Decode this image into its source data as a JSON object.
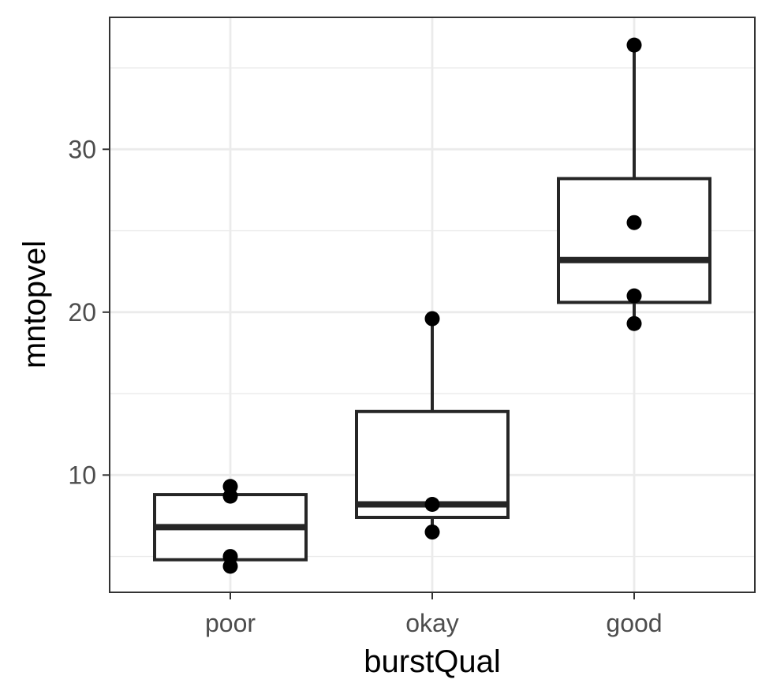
{
  "chart_data": {
    "type": "box",
    "xlabel": "burstQual",
    "ylabel": "mntopvel",
    "categories": [
      "poor",
      "okay",
      "good"
    ],
    "y_ticks": [
      10,
      20,
      30
    ],
    "ylim": [
      2.8,
      38.1
    ],
    "grid": true,
    "boxes": [
      {
        "category": "poor",
        "whisker_low": 4.4,
        "q1": 4.8,
        "median": 6.8,
        "q3": 8.8,
        "whisker_high": 9.3
      },
      {
        "category": "okay",
        "whisker_low": 6.5,
        "q1": 7.4,
        "median": 8.2,
        "q3": 13.9,
        "whisker_high": 19.6
      },
      {
        "category": "good",
        "whisker_low": 19.3,
        "q1": 20.6,
        "median": 23.2,
        "q3": 28.2,
        "whisker_high": 36.4
      }
    ],
    "points": [
      {
        "category": "poor",
        "y": 9.3
      },
      {
        "category": "poor",
        "y": 8.7
      },
      {
        "category": "poor",
        "y": 5.0
      },
      {
        "category": "poor",
        "y": 4.4
      },
      {
        "category": "okay",
        "y": 19.6
      },
      {
        "category": "okay",
        "y": 8.2
      },
      {
        "category": "okay",
        "y": 6.5
      },
      {
        "category": "good",
        "y": 36.4
      },
      {
        "category": "good",
        "y": 25.5
      },
      {
        "category": "good",
        "y": 21.0
      },
      {
        "category": "good",
        "y": 19.3
      }
    ],
    "colors": {
      "panel_border": "#333333",
      "grid": "#ebebeb",
      "box": "#262626",
      "point": "#000000",
      "tick_text": "#4d4d4d",
      "title_text": "#000000"
    }
  }
}
